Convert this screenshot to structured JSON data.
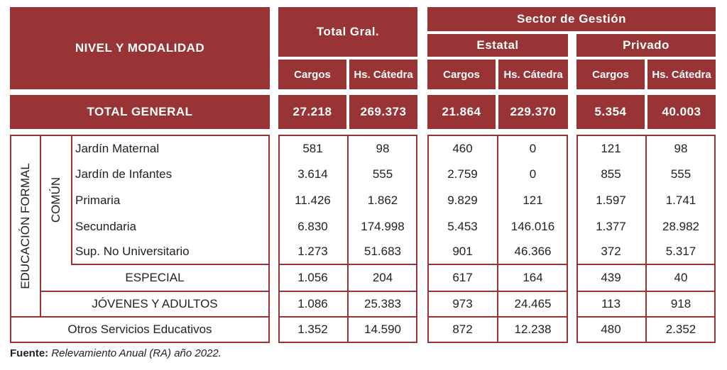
{
  "header": {
    "nivel": "NIVEL Y MODALIDAD",
    "total_gral": "Total Gral.",
    "sector": "Sector de Gestión",
    "estatal": "Estatal",
    "privado": "Privado",
    "cargos": "Cargos",
    "hs_catedra": "Hs. Cátedra"
  },
  "total_general": {
    "label": "TOTAL GENERAL",
    "values": [
      "27.218",
      "269.373",
      "21.864",
      "229.370",
      "5.354",
      "40.003"
    ]
  },
  "group_labels": {
    "educacion_formal": "EDUCACIÓN FORMAL",
    "comun": "COMÚN"
  },
  "rows": [
    {
      "label": "Jardín Maternal",
      "values": [
        "581",
        "98",
        "460",
        "0",
        "121",
        "98"
      ]
    },
    {
      "label": "Jardín de Infantes",
      "values": [
        "3.614",
        "555",
        "2.759",
        "0",
        "855",
        "555"
      ]
    },
    {
      "label": "Primaria",
      "values": [
        "11.426",
        "1.862",
        "9.829",
        "121",
        "1.597",
        "1.741"
      ]
    },
    {
      "label": "Secundaria",
      "values": [
        "6.830",
        "174.998",
        "5.453",
        "146.016",
        "1.377",
        "28.982"
      ]
    },
    {
      "label": "Sup. No Universitario",
      "values": [
        "1.273",
        "51.683",
        "901",
        "46.366",
        "372",
        "5.317"
      ]
    },
    {
      "label": "ESPECIAL",
      "values": [
        "1.056",
        "204",
        "617",
        "164",
        "439",
        "40"
      ]
    },
    {
      "label": "JÓVENES Y ADULTOS",
      "values": [
        "1.086",
        "25.383",
        "973",
        "24.465",
        "113",
        "918"
      ]
    },
    {
      "label": "Otros Servicios Educativos",
      "values": [
        "1.352",
        "14.590",
        "872",
        "12.238",
        "480",
        "2.352"
      ]
    }
  ],
  "footer": {
    "label": "Fuente:",
    "text": "Relevamiento Anual (RA) año 2022."
  },
  "colors": {
    "accent": "#983435"
  }
}
